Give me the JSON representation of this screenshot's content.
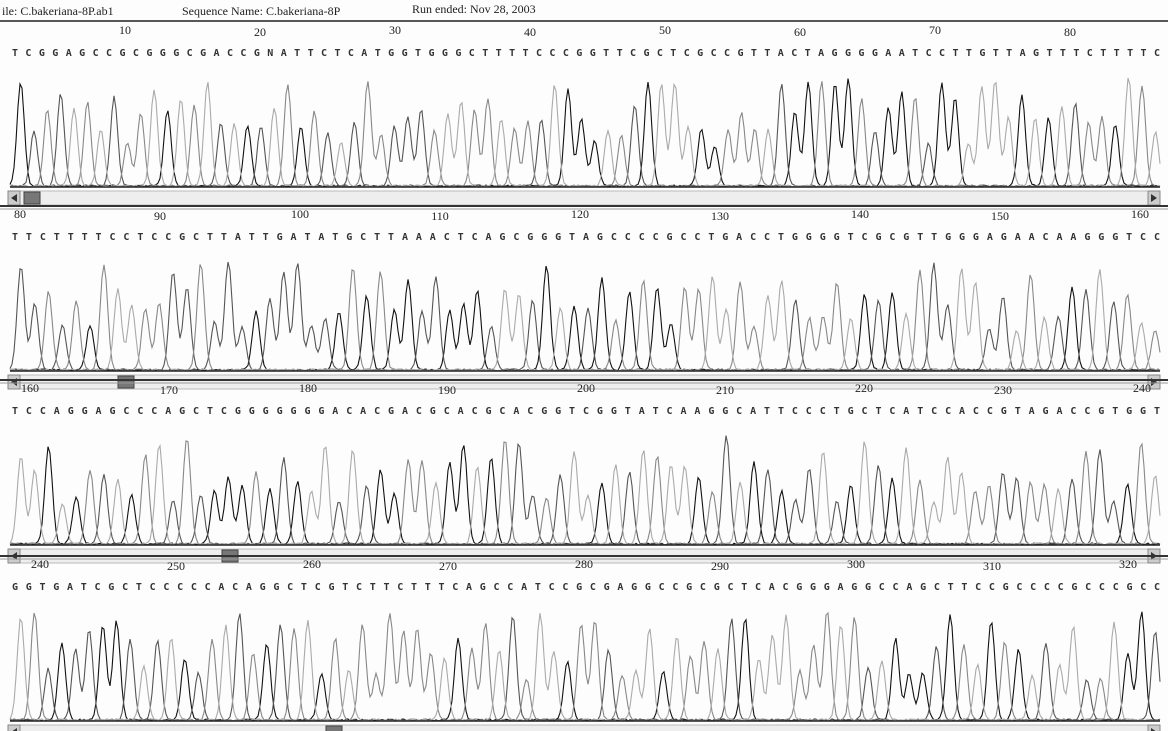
{
  "header": {
    "file": "ile: C.bakeriana-8P.ab1",
    "sequence_name": "Sequence Name: C.bakeriana-8P",
    "run_ended": "Run ended: Nov 28, 2003"
  },
  "panels": [
    {
      "positions": [
        10,
        20,
        30,
        40,
        50,
        60,
        70,
        80
      ],
      "sequence": "TCGGAGCCGCGGGCGACCGNATTCTCATGGTGGGCTTTTCCCGGTTCGCTCGCCGTTACTAGGGGAATCCTTGTTAGTTTCTTTTC"
    },
    {
      "positions": [
        80,
        90,
        100,
        110,
        120,
        130,
        140,
        150,
        160
      ],
      "sequence": "TTCTTTTCCTCCGCTTATTGATATGCTTAAACTCAGCGGGTAGCCCCGCCTGACCTGGGGTCGCGTTGGGAGAACAAGGGTCC"
    },
    {
      "positions": [
        160,
        170,
        180,
        190,
        200,
        210,
        220,
        230,
        240
      ],
      "sequence": "TCCAGGAGCCCAGCTCGGGGGGGACACGACGCACGCACGGTCGGTATCAAGGCATTCCCTGCTCATCCACCGTAGACCGTGGT"
    },
    {
      "positions": [
        240,
        250,
        260,
        270,
        280,
        290,
        300,
        310,
        320
      ],
      "sequence": "GGTGATCGCTCCCCCACAGGCTCGTCTTCTTTCAGCCATCCGCGAGGCCGCGCTCACGGGAGGCCAGCTTCCGCCCCGCCCGCC"
    }
  ]
}
